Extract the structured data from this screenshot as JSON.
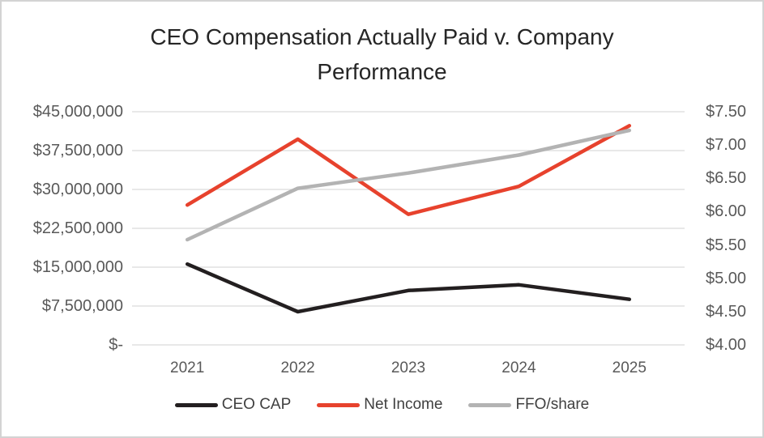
{
  "chart_data": {
    "type": "line",
    "title": "CEO Compensation Actually Paid v. Company Performance",
    "categories": [
      "2021",
      "2022",
      "2023",
      "2024",
      "2025"
    ],
    "series": [
      {
        "name": "CEO CAP",
        "axis": "left",
        "color": "#231f20",
        "values": [
          15600000,
          6400000,
          10500000,
          11600000,
          8800000
        ]
      },
      {
        "name": "Net Income",
        "axis": "left",
        "color": "#e7422d",
        "values": [
          27000000,
          39700000,
          25200000,
          30600000,
          42300000
        ]
      },
      {
        "name": "FFO/share",
        "axis": "right",
        "color": "#b3b3b3",
        "values": [
          5.58,
          6.35,
          6.58,
          6.85,
          7.22
        ]
      }
    ],
    "left_axis": {
      "min": 0,
      "max": 45000000,
      "step": 7500000,
      "labels": [
        "$-",
        "$7,500,000",
        "$15,000,000",
        "$22,500,000",
        "$30,000,000",
        "$37,500,000",
        "$45,000,000"
      ]
    },
    "right_axis": {
      "min": 4.0,
      "max": 7.5,
      "step": 0.5,
      "labels": [
        "$4.00",
        "$4.50",
        "$5.00",
        "$5.50",
        "$6.00",
        "$6.50",
        "$7.00",
        "$7.50"
      ]
    },
    "legend_position": "bottom",
    "grid": true
  },
  "colors": {
    "grid": "#d9d9d9",
    "axis_text": "#595959",
    "legend_text": "#404040",
    "title_text": "#262626",
    "background": "#ffffff",
    "frame_border": "#d3d3d3"
  }
}
